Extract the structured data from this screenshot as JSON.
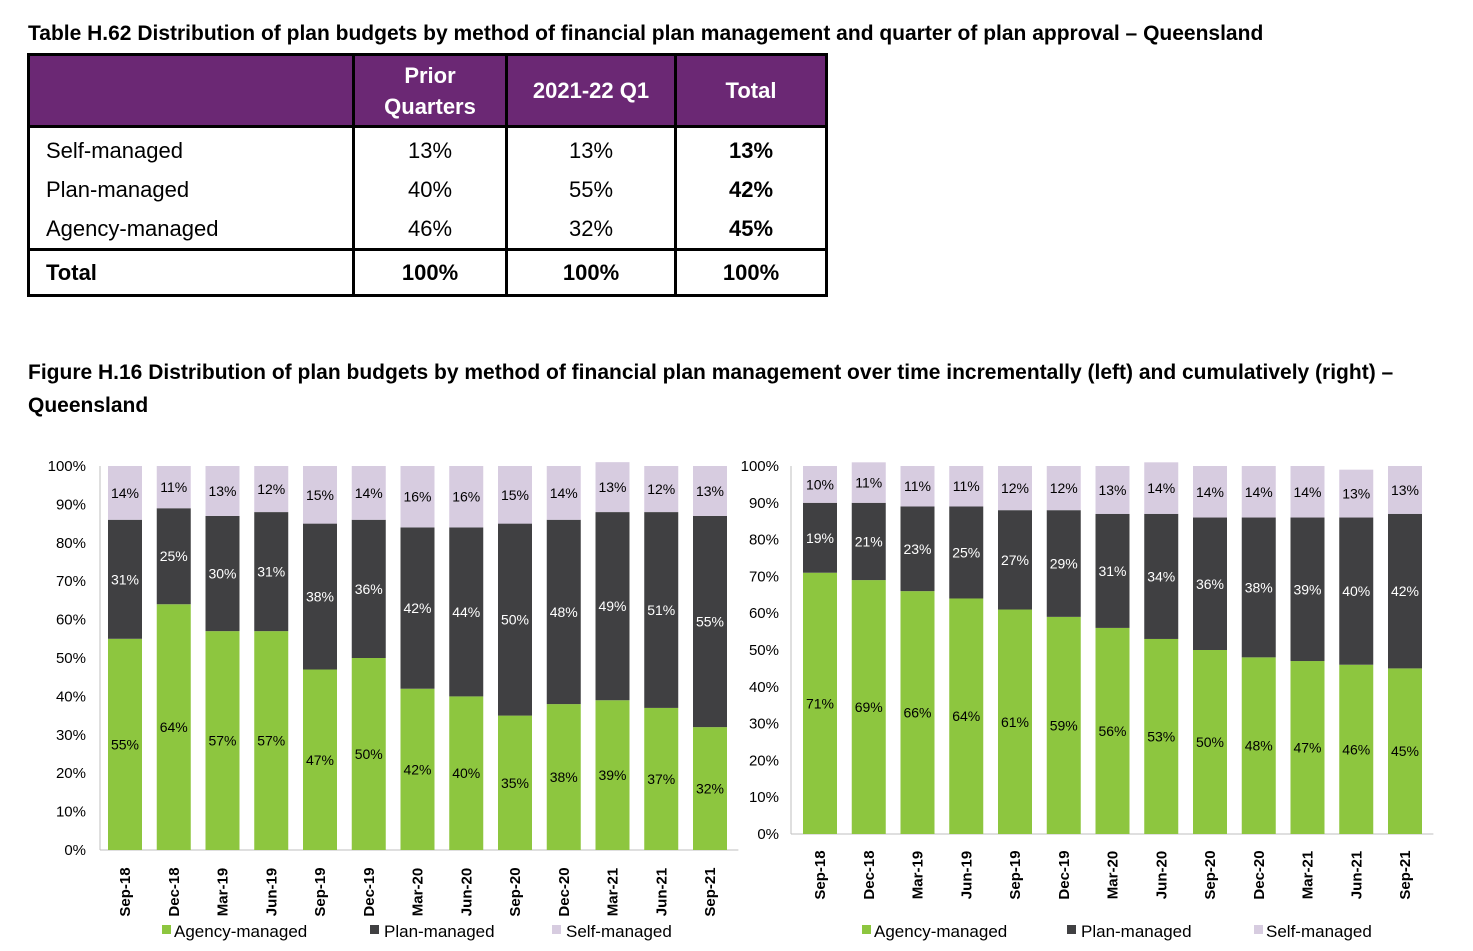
{
  "table": {
    "title": "Table H.62 Distribution of plan budgets by method of financial plan management and quarter of plan approval – Queensland",
    "headers": [
      "",
      "Prior Quarters",
      "2021-22 Q1",
      "Total"
    ],
    "rows": [
      {
        "label": "Self-managed",
        "prior": "13%",
        "q1": "13%",
        "total": "13%"
      },
      {
        "label": "Plan-managed",
        "prior": "40%",
        "q1": "55%",
        "total": "42%"
      },
      {
        "label": "Agency-managed",
        "prior": "46%",
        "q1": "32%",
        "total": "45%"
      }
    ],
    "total_row": {
      "label": "Total",
      "prior": "100%",
      "q1": "100%",
      "total": "100%"
    }
  },
  "figure": {
    "title": "Figure H.16 Distribution of plan budgets by method of financial plan management over time incrementally (left) and cumulatively (right) – Queensland"
  },
  "chart_data": [
    {
      "type": "bar",
      "stacked": true,
      "categories": [
        "Sep-18",
        "Dec-18",
        "Mar-19",
        "Jun-19",
        "Sep-19",
        "Dec-19",
        "Mar-20",
        "Jun-20",
        "Sep-20",
        "Dec-20",
        "Mar-21",
        "Jun-21",
        "Sep-21"
      ],
      "series": [
        {
          "name": "Agency-managed",
          "color": "#8dc63f",
          "values": [
            55,
            64,
            57,
            57,
            47,
            50,
            42,
            40,
            35,
            38,
            39,
            37,
            32
          ]
        },
        {
          "name": "Plan-managed",
          "color": "#404042",
          "values": [
            31,
            25,
            30,
            31,
            38,
            36,
            42,
            44,
            50,
            48,
            49,
            51,
            55
          ]
        },
        {
          "name": "Self-managed",
          "color": "#d7cce0",
          "values": [
            14,
            11,
            13,
            12,
            15,
            14,
            16,
            16,
            15,
            14,
            13,
            12,
            13
          ]
        }
      ],
      "ylim": [
        0,
        100
      ],
      "yticks": [
        "0%",
        "10%",
        "20%",
        "30%",
        "40%",
        "50%",
        "60%",
        "70%",
        "80%",
        "90%",
        "100%"
      ],
      "legend": "bottom"
    },
    {
      "type": "bar",
      "stacked": true,
      "categories": [
        "Sep-18",
        "Dec-18",
        "Mar-19",
        "Jun-19",
        "Sep-19",
        "Dec-19",
        "Mar-20",
        "Jun-20",
        "Sep-20",
        "Dec-20",
        "Mar-21",
        "Jun-21",
        "Sep-21"
      ],
      "series": [
        {
          "name": "Agency-managed",
          "color": "#8dc63f",
          "values": [
            71,
            69,
            66,
            64,
            61,
            59,
            56,
            53,
            50,
            48,
            47,
            46,
            45
          ]
        },
        {
          "name": "Plan-managed",
          "color": "#404042",
          "values": [
            19,
            21,
            23,
            25,
            27,
            29,
            31,
            34,
            36,
            38,
            39,
            40,
            42
          ]
        },
        {
          "name": "Self-managed",
          "color": "#d7cce0",
          "values": [
            10,
            11,
            11,
            11,
            12,
            12,
            13,
            14,
            14,
            14,
            14,
            13,
            13
          ]
        }
      ],
      "ylim": [
        0,
        100
      ],
      "yticks": [
        "0%",
        "10%",
        "20%",
        "30%",
        "40%",
        "50%",
        "60%",
        "70%",
        "80%",
        "90%",
        "100%"
      ],
      "legend": "bottom"
    }
  ]
}
